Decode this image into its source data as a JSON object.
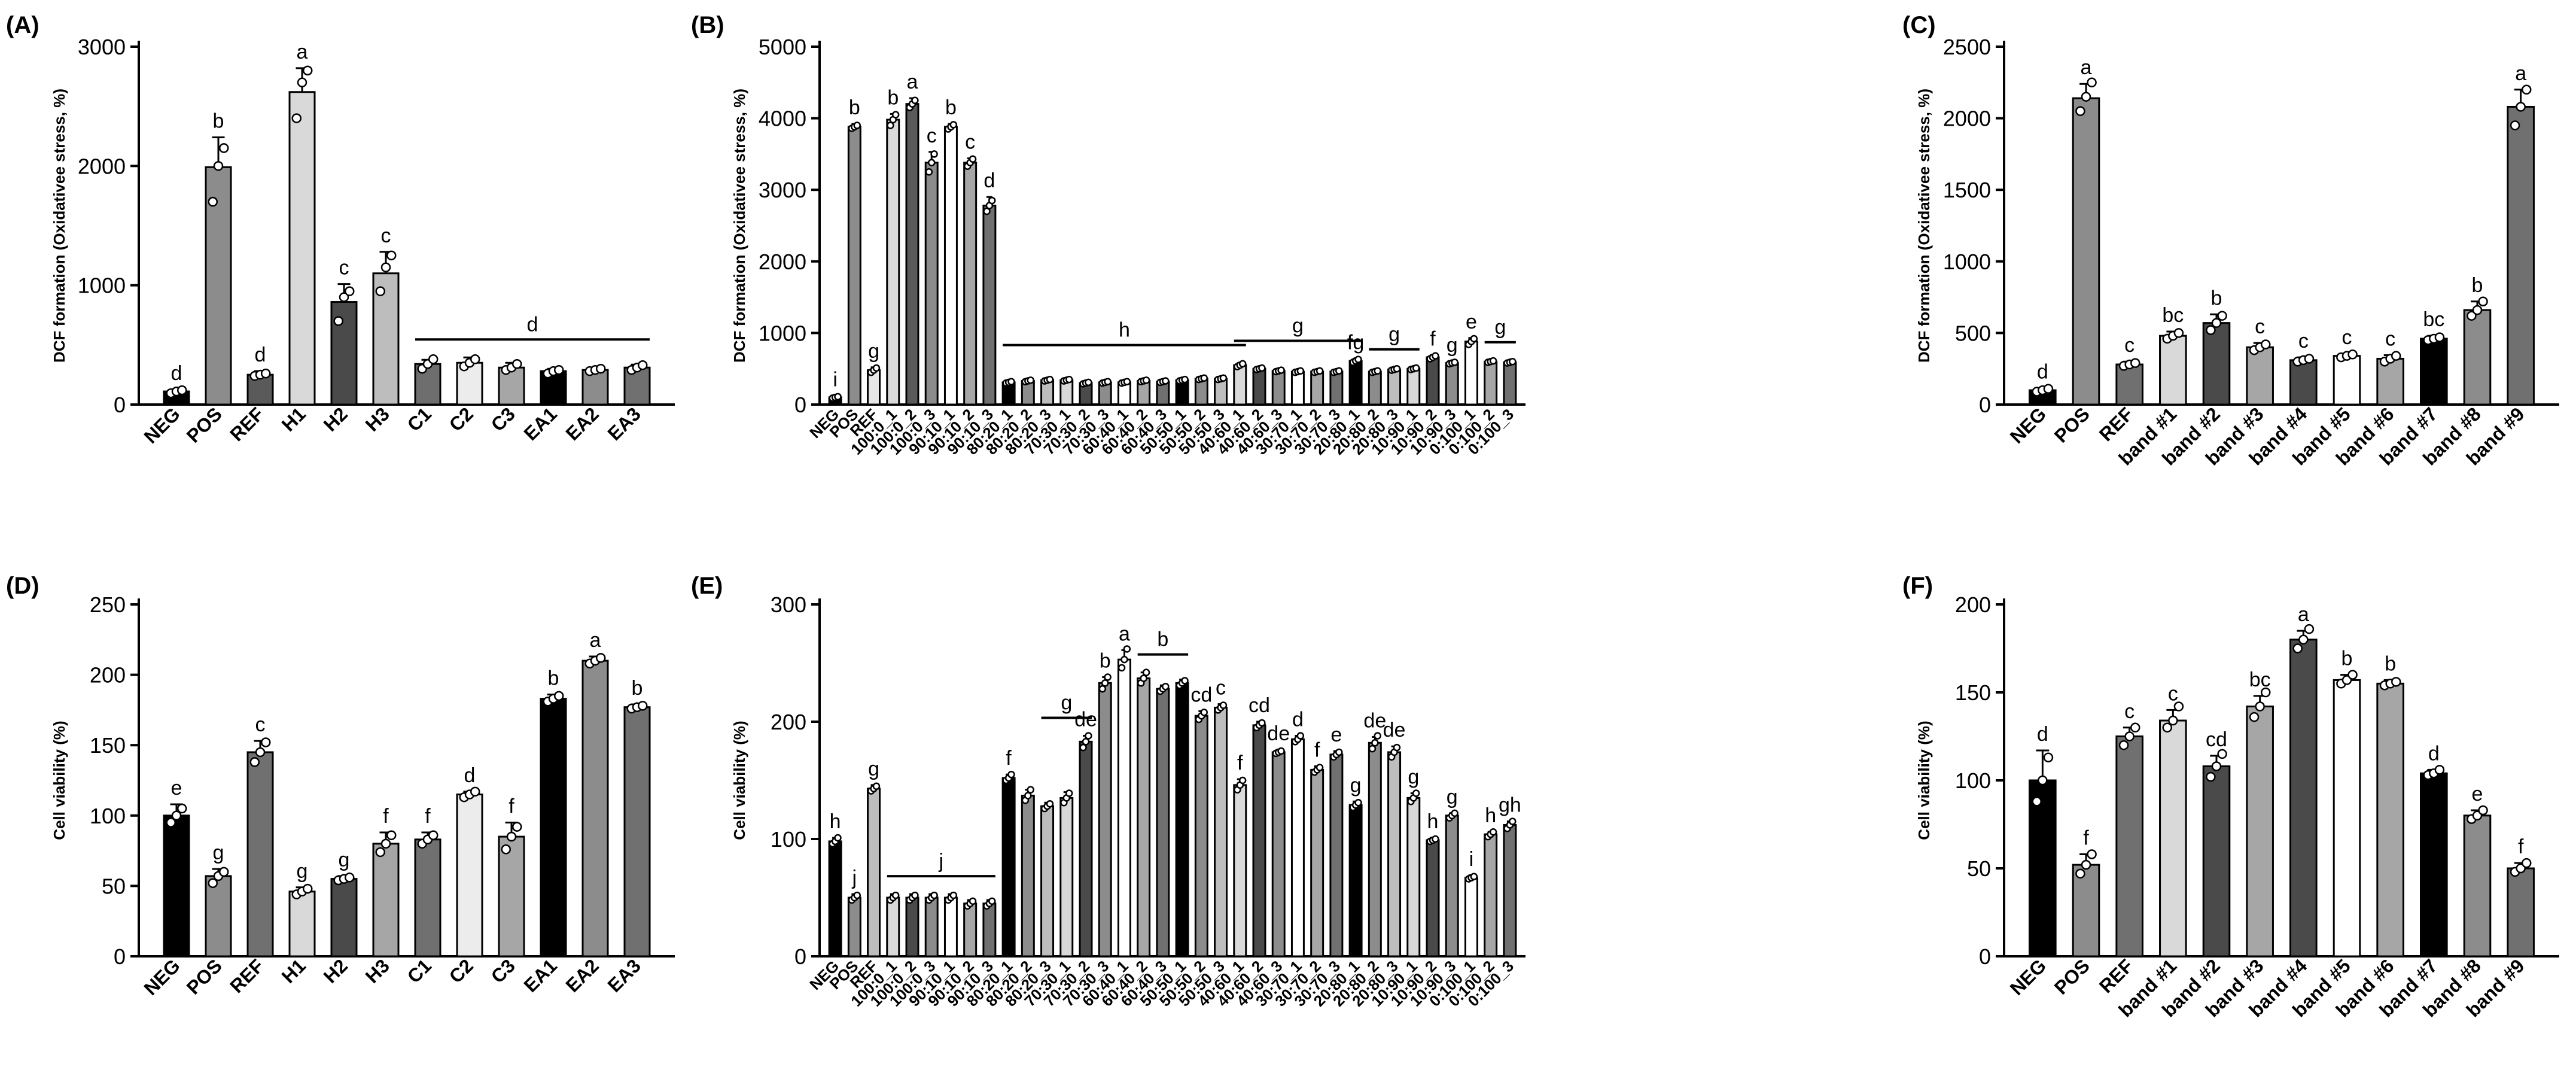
{
  "chart_data": [
    {
      "panel": "(A)",
      "type": "bar",
      "ylabel": "DCF formation (Oxidativee stress, %)",
      "ylim": [
        0,
        3000
      ],
      "yticks": [
        0,
        1000,
        2000,
        3000
      ],
      "categories": [
        "NEG",
        "POS",
        "REF",
        "H1",
        "H2",
        "H3",
        "C1",
        "C2",
        "C3",
        "EA1",
        "EA2",
        "EA3"
      ],
      "values": [
        110,
        1990,
        250,
        2620,
        860,
        1100,
        340,
        350,
        310,
        280,
        290,
        310
      ],
      "errors": [
        15,
        250,
        30,
        200,
        150,
        180,
        35,
        45,
        40,
        20,
        15,
        25
      ],
      "colors": [
        "#000000",
        "#8c8c8c",
        "#5a5a5a",
        "#d9d9d9",
        "#4a4a4a",
        "#bdbdbd",
        "#6e6e6e",
        "#ececec",
        "#a6a6a6",
        "#000000",
        "#8c8c8c",
        "#707070"
      ],
      "letters": [
        "d",
        "b",
        "d",
        "a",
        "c",
        "c",
        "",
        "",
        "",
        "",
        "",
        ""
      ],
      "groups": [
        {
          "from": 6,
          "to": 11,
          "letter": "d"
        }
      ],
      "points": [
        [
          95,
          110,
          120
        ],
        [
          1700,
          2000,
          2150
        ],
        [
          240,
          250,
          260
        ],
        [
          2400,
          2700,
          2800
        ],
        [
          700,
          900,
          950
        ],
        [
          950,
          1150,
          1250
        ],
        [
          300,
          340,
          380
        ],
        [
          320,
          350,
          380
        ],
        [
          290,
          310,
          340
        ],
        [
          260,
          280,
          290
        ],
        [
          280,
          290,
          300
        ],
        [
          290,
          310,
          330
        ]
      ]
    },
    {
      "panel": "(B)",
      "type": "bar",
      "ylabel": "DCF formation (Oxidativee stress, %)",
      "ylim": [
        0,
        5000
      ],
      "yticks": [
        0,
        1000,
        2000,
        3000,
        4000,
        5000
      ],
      "categories": [
        "NEG",
        "POS",
        "REF",
        "100:0_1",
        "100:0_2",
        "100:0_3",
        "90:10_1",
        "90:10_2",
        "90:10_3",
        "80:20_1",
        "80:20_2",
        "80:20_3",
        "70:30_1",
        "70:30_2",
        "70:30_3",
        "60:40_1",
        "60:40_2",
        "60:40_3",
        "50:50_1",
        "50:50_2",
        "50:50_3",
        "40:60_1",
        "40:60_2",
        "40:60_3",
        "30:70_1",
        "30:70_2",
        "30:70_3",
        "20:80_1",
        "20:80_2",
        "20:80_3",
        "10:90_1",
        "10:90_2",
        "10:90_3",
        "0:100_1",
        "0:100_2",
        "0:100_3"
      ],
      "values": [
        100,
        3880,
        480,
        3980,
        4200,
        3380,
        3880,
        3380,
        2780,
        310,
        330,
        340,
        340,
        300,
        310,
        310,
        330,
        320,
        340,
        360,
        360,
        550,
        500,
        470,
        460,
        460,
        460,
        610,
        460,
        490,
        500,
        660,
        580,
        880,
        600,
        590
      ],
      "errors": [
        20,
        40,
        40,
        80,
        80,
        150,
        40,
        60,
        120,
        20,
        20,
        20,
        20,
        20,
        20,
        20,
        20,
        20,
        20,
        20,
        20,
        30,
        20,
        20,
        20,
        20,
        20,
        30,
        20,
        20,
        20,
        30,
        20,
        50,
        20,
        20
      ],
      "colors": [
        "#000000",
        "#8c8c8c",
        "#e6e6e6",
        "#d9d9d9",
        "#5a5a5a",
        "#8c8c8c",
        "#ffffff",
        "#a6a6a6",
        "#707070",
        "#000000",
        "#8c8c8c",
        "#bdbdbd",
        "#d9d9d9",
        "#4a4a4a",
        "#8c8c8c",
        "#ffffff",
        "#a6a6a6",
        "#707070",
        "#000000",
        "#8c8c8c",
        "#bdbdbd",
        "#d9d9d9",
        "#4a4a4a",
        "#8c8c8c",
        "#ffffff",
        "#a6a6a6",
        "#707070",
        "#000000",
        "#8c8c8c",
        "#bdbdbd",
        "#d9d9d9",
        "#4a4a4a",
        "#8c8c8c",
        "#ffffff",
        "#a6a6a6",
        "#707070"
      ],
      "letters": [
        "i",
        "b",
        "g",
        "b",
        "a",
        "c",
        "b",
        "c",
        "d",
        "",
        "",
        "",
        "",
        "",
        "",
        "",
        "",
        "",
        "",
        "",
        "",
        "",
        "",
        "",
        "",
        "",
        "",
        "fg",
        "",
        "",
        "",
        "f",
        "g",
        "e",
        "",
        ""
      ],
      "groups": [
        {
          "from": 9,
          "to": 21,
          "letter": "h"
        },
        {
          "from": 21,
          "to": 27,
          "letter": "g"
        },
        {
          "from": 28,
          "to": 30,
          "letter": "g"
        },
        {
          "from": 34,
          "to": 35,
          "letter": "g"
        }
      ],
      "points": [
        [
          90,
          100,
          110
        ],
        [
          3860,
          3880,
          3900
        ],
        [
          450,
          480,
          510
        ],
        [
          3900,
          3980,
          4050
        ],
        [
          4150,
          4200,
          4250
        ],
        [
          3250,
          3380,
          3500
        ],
        [
          3850,
          3880,
          3910
        ],
        [
          3330,
          3380,
          3430
        ],
        [
          2700,
          2780,
          2850
        ],
        [
          300,
          310,
          320
        ],
        [
          320,
          330,
          340
        ],
        [
          330,
          340,
          350
        ],
        [
          330,
          340,
          350
        ],
        [
          290,
          300,
          310
        ],
        [
          300,
          310,
          320
        ],
        [
          300,
          310,
          320
        ],
        [
          320,
          330,
          340
        ],
        [
          310,
          320,
          330
        ],
        [
          330,
          340,
          350
        ],
        [
          350,
          360,
          370
        ],
        [
          350,
          360,
          370
        ],
        [
          530,
          550,
          570
        ],
        [
          490,
          500,
          510
        ],
        [
          460,
          470,
          480
        ],
        [
          450,
          460,
          470
        ],
        [
          450,
          460,
          470
        ],
        [
          450,
          460,
          470
        ],
        [
          590,
          610,
          630
        ],
        [
          450,
          460,
          470
        ],
        [
          480,
          490,
          500
        ],
        [
          490,
          500,
          510
        ],
        [
          640,
          660,
          680
        ],
        [
          570,
          580,
          590
        ],
        [
          840,
          880,
          920
        ],
        [
          590,
          600,
          610
        ],
        [
          580,
          590,
          600
        ]
      ]
    },
    {
      "panel": "(C)",
      "type": "bar",
      "ylabel": "DCF formation (Oxidativee stress, %)",
      "ylim": [
        0,
        2500
      ],
      "yticks": [
        0,
        500,
        1000,
        1500,
        2000,
        2500
      ],
      "categories": [
        "NEG",
        "POS",
        "REF",
        "band #1",
        "band #2",
        "band #3",
        "band #4",
        "band #5",
        "band #6",
        "band #7",
        "band #8",
        "band #9"
      ],
      "values": [
        100,
        2140,
        280,
        480,
        570,
        400,
        310,
        340,
        320,
        460,
        660,
        2080
      ],
      "errors": [
        15,
        100,
        20,
        30,
        60,
        30,
        20,
        15,
        25,
        20,
        60,
        120
      ],
      "colors": [
        "#000000",
        "#8c8c8c",
        "#707070",
        "#d9d9d9",
        "#4a4a4a",
        "#a6a6a6",
        "#4a4a4a",
        "#ffffff",
        "#a6a6a6",
        "#000000",
        "#8c8c8c",
        "#707070"
      ],
      "letters": [
        "d",
        "a",
        "c",
        "bc",
        "b",
        "c",
        "c",
        "c",
        "c",
        "bc",
        "b",
        "a"
      ],
      "groups": [],
      "points": [
        [
          90,
          100,
          110
        ],
        [
          2050,
          2150,
          2250
        ],
        [
          270,
          280,
          290
        ],
        [
          460,
          480,
          500
        ],
        [
          520,
          570,
          620
        ],
        [
          380,
          400,
          420
        ],
        [
          300,
          310,
          320
        ],
        [
          330,
          340,
          350
        ],
        [
          300,
          320,
          340
        ],
        [
          450,
          460,
          470
        ],
        [
          620,
          660,
          720
        ],
        [
          1950,
          2080,
          2200
        ]
      ]
    },
    {
      "panel": "(D)",
      "type": "bar",
      "ylabel": "Cell viability (%)",
      "ylim": [
        0,
        250
      ],
      "yticks": [
        0,
        50,
        100,
        150,
        200,
        250
      ],
      "categories": [
        "NEG",
        "POS",
        "REF",
        "H1",
        "H2",
        "H3",
        "C1",
        "C2",
        "C3",
        "EA1",
        "EA2",
        "EA3"
      ],
      "values": [
        100,
        57,
        145,
        46,
        55,
        80,
        83,
        115,
        85,
        183,
        210,
        177
      ],
      "errors": [
        8,
        5,
        8,
        3,
        2,
        8,
        5,
        2,
        10,
        3,
        3,
        2
      ],
      "colors": [
        "#000000",
        "#8c8c8c",
        "#707070",
        "#d9d9d9",
        "#4a4a4a",
        "#a6a6a6",
        "#707070",
        "#ececec",
        "#a6a6a6",
        "#000000",
        "#8c8c8c",
        "#707070"
      ],
      "letters": [
        "e",
        "g",
        "c",
        "g",
        "g",
        "f",
        "f",
        "d",
        "f",
        "b",
        "a",
        "b"
      ],
      "groups": [],
      "points": [
        [
          95,
          100,
          105
        ],
        [
          52,
          57,
          60
        ],
        [
          138,
          145,
          152
        ],
        [
          44,
          46,
          48
        ],
        [
          54,
          55,
          56
        ],
        [
          74,
          80,
          86
        ],
        [
          80,
          83,
          86
        ],
        [
          113,
          115,
          117
        ],
        [
          76,
          85,
          92
        ],
        [
          181,
          183,
          185
        ],
        [
          208,
          210,
          212
        ],
        [
          176,
          177,
          178
        ]
      ]
    },
    {
      "panel": "(E)",
      "type": "bar",
      "ylabel": "Cell viability (%)",
      "ylim": [
        0,
        300
      ],
      "yticks": [
        0,
        100,
        200,
        300
      ],
      "categories": [
        "NEG",
        "POS",
        "REF",
        "100:0_1",
        "100:0_2",
        "100:0_3",
        "90:10_1",
        "90:10_2",
        "90:10_3",
        "80:20_1",
        "80:20_2",
        "80:20_3",
        "70:30_1",
        "70:30_2",
        "70:30_3",
        "60:40_1",
        "60:40_2",
        "60:40_3",
        "50:50_1",
        "50:50_2",
        "50:50_3",
        "40:60_1",
        "40:60_2",
        "40:60_3",
        "30:70_1",
        "30:70_2",
        "30:70_3",
        "20:80_1",
        "20:80_2",
        "20:80_3",
        "10:90_1",
        "10:90_2",
        "10:90_3",
        "0:100_1",
        "0:100_2",
        "0:100_3"
      ],
      "values": [
        98,
        50,
        143,
        50,
        50,
        50,
        50,
        45,
        45,
        152,
        137,
        128,
        135,
        183,
        233,
        253,
        237,
        228,
        233,
        205,
        212,
        146,
        197,
        174,
        185,
        159,
        172,
        129,
        182,
        174,
        135,
        99,
        120,
        67,
        104,
        112
      ],
      "errors": [
        3,
        3,
        3,
        3,
        3,
        3,
        3,
        3,
        3,
        3,
        5,
        3,
        5,
        5,
        5,
        8,
        5,
        3,
        3,
        4,
        3,
        5,
        3,
        2,
        3,
        3,
        3,
        3,
        5,
        5,
        4,
        2,
        2,
        2,
        2,
        3
      ],
      "colors": [
        "#000000",
        "#8c8c8c",
        "#bdbdbd",
        "#d9d9d9",
        "#4a4a4a",
        "#8c8c8c",
        "#ffffff",
        "#a6a6a6",
        "#707070",
        "#000000",
        "#8c8c8c",
        "#bdbdbd",
        "#d9d9d9",
        "#4a4a4a",
        "#8c8c8c",
        "#ffffff",
        "#a6a6a6",
        "#707070",
        "#000000",
        "#8c8c8c",
        "#bdbdbd",
        "#d9d9d9",
        "#4a4a4a",
        "#8c8c8c",
        "#ffffff",
        "#a6a6a6",
        "#707070",
        "#000000",
        "#8c8c8c",
        "#bdbdbd",
        "#d9d9d9",
        "#4a4a4a",
        "#8c8c8c",
        "#ffffff",
        "#a6a6a6",
        "#707070"
      ],
      "letters": [
        "h",
        "j",
        "g",
        "",
        "",
        "",
        "",
        "",
        "",
        "f",
        "",
        "",
        "",
        "de",
        "b",
        "a",
        "",
        "",
        "",
        "cd",
        "c",
        "f",
        "cd",
        "de",
        "d",
        "f",
        "e",
        "g",
        "de",
        "de",
        "g",
        "h",
        "g",
        "i",
        "h",
        "gh"
      ],
      "groups": [
        {
          "from": 3,
          "to": 8,
          "letter": "j"
        },
        {
          "from": 11,
          "to": 13,
          "letter": "g"
        },
        {
          "from": 16,
          "to": 18,
          "letter": "b"
        }
      ],
      "points": [
        [
          96,
          98,
          101
        ],
        [
          48,
          50,
          52
        ],
        [
          141,
          143,
          145
        ],
        [
          48,
          50,
          52
        ],
        [
          48,
          50,
          52
        ],
        [
          48,
          50,
          52
        ],
        [
          48,
          50,
          52
        ],
        [
          43,
          45,
          47
        ],
        [
          43,
          45,
          47
        ],
        [
          150,
          152,
          155
        ],
        [
          133,
          137,
          142
        ],
        [
          126,
          128,
          130
        ],
        [
          131,
          135,
          139
        ],
        [
          178,
          183,
          188
        ],
        [
          228,
          233,
          238
        ],
        [
          246,
          253,
          262
        ],
        [
          233,
          237,
          242
        ],
        [
          226,
          228,
          230
        ],
        [
          231,
          233,
          235
        ],
        [
          202,
          205,
          208
        ],
        [
          210,
          212,
          214
        ],
        [
          142,
          146,
          150
        ],
        [
          195,
          197,
          199
        ],
        [
          173,
          174,
          175
        ],
        [
          183,
          185,
          188
        ],
        [
          157,
          159,
          161
        ],
        [
          170,
          172,
          174
        ],
        [
          127,
          129,
          131
        ],
        [
          177,
          182,
          188
        ],
        [
          170,
          174,
          178
        ],
        [
          132,
          135,
          139
        ],
        [
          98,
          99,
          100
        ],
        [
          118,
          120,
          122
        ],
        [
          66,
          67,
          68
        ],
        [
          102,
          104,
          106
        ],
        [
          109,
          112,
          115
        ]
      ]
    },
    {
      "panel": "(F)",
      "type": "bar",
      "ylabel": "Cell viability (%)",
      "ylim": [
        0,
        200
      ],
      "yticks": [
        0,
        50,
        100,
        150,
        200
      ],
      "categories": [
        "NEG",
        "POS",
        "REF",
        "band #1",
        "band #2",
        "band #3",
        "band #4",
        "band #5",
        "band #6",
        "band #7",
        "band #8",
        "band #9"
      ],
      "values": [
        100,
        52,
        125,
        134,
        108,
        142,
        180,
        157,
        155,
        104,
        80,
        50
      ],
      "errors": [
        17,
        6,
        5,
        6,
        6,
        6,
        5,
        3,
        2,
        2,
        3,
        3
      ],
      "colors": [
        "#000000",
        "#8c8c8c",
        "#707070",
        "#d9d9d9",
        "#4a4a4a",
        "#a6a6a6",
        "#4a4a4a",
        "#ffffff",
        "#a6a6a6",
        "#000000",
        "#8c8c8c",
        "#707070"
      ],
      "letters": [
        "d",
        "f",
        "c",
        "c",
        "cd",
        "bc",
        "a",
        "b",
        "b",
        "d",
        "e",
        "f"
      ],
      "groups": [],
      "points": [
        [
          88,
          100,
          113
        ],
        [
          47,
          52,
          58
        ],
        [
          120,
          125,
          130
        ],
        [
          130,
          134,
          142
        ],
        [
          102,
          108,
          115
        ],
        [
          136,
          142,
          150
        ],
        [
          175,
          180,
          186
        ],
        [
          155,
          157,
          160
        ],
        [
          154,
          155,
          156
        ],
        [
          103,
          104,
          106
        ],
        [
          78,
          80,
          83
        ],
        [
          48,
          50,
          53
        ]
      ]
    }
  ]
}
